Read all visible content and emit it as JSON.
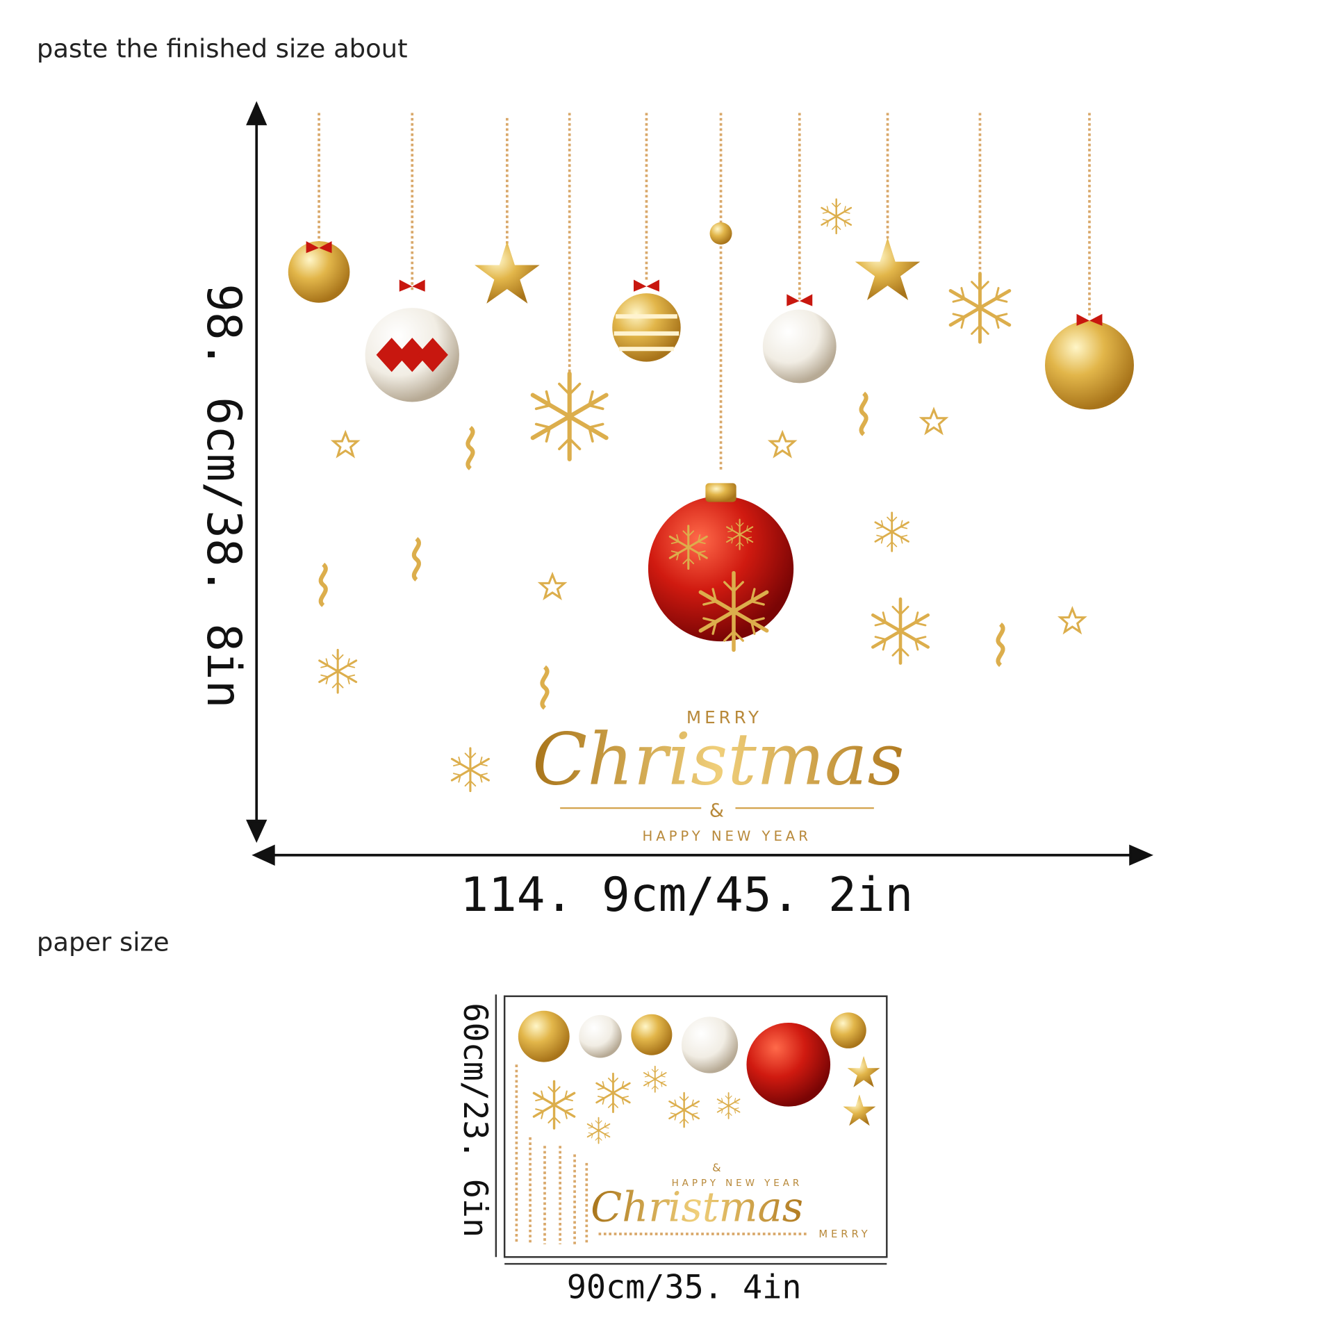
{
  "header": {
    "title": "paste the finished  size about"
  },
  "finished": {
    "height": "98. 6cm/38. 8in",
    "width": "114. 9cm/45. 2in"
  },
  "artwork": {
    "merry": "MERRY",
    "christmas": "Christmas",
    "and": "&",
    "new_year": "HAPPY NEW YEAR"
  },
  "paper": {
    "title": "paper size",
    "height": "60cm/23. 6in",
    "width": "90cm/35. 4in",
    "merry": "MERRY",
    "christmas": "Christmas",
    "and": "&",
    "new_year": "HAPPY NEW YEAR"
  }
}
